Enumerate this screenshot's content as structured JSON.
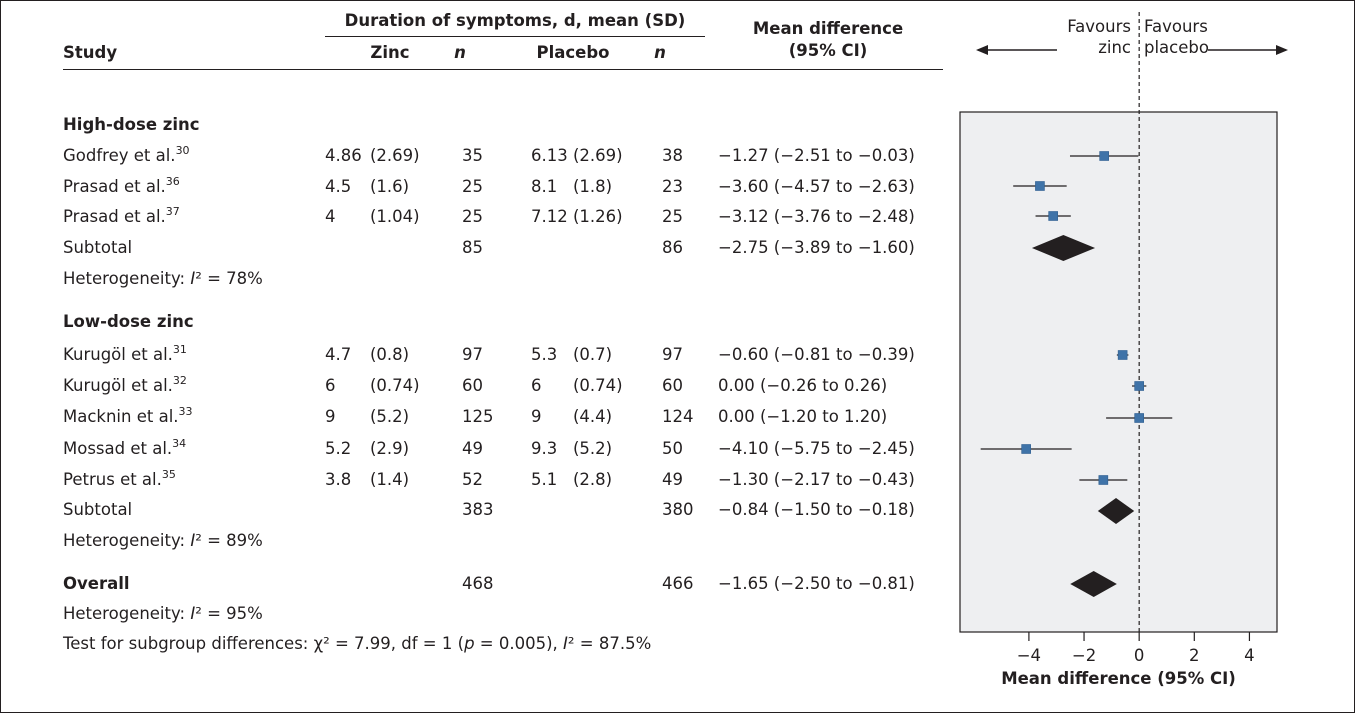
{
  "header": {
    "study": "Study",
    "duration": "Duration of symptoms, d, mean (SD)",
    "zinc": "Zinc",
    "n1": "n",
    "placebo": "Placebo",
    "n2": "n",
    "md_line1": "Mean difference",
    "md_line2": "(95% CI)",
    "favours_zinc_1": "Favours",
    "favours_zinc_2": "zinc",
    "favours_placebo_1": "Favours",
    "favours_placebo_2": "placebo"
  },
  "groups": [
    {
      "name": "High-dose zinc",
      "rows": [
        {
          "study": "Godfrey et al.",
          "ref": "30",
          "zinc_mean": "4.86",
          "zinc_sd": "(2.69)",
          "zinc_n": "35",
          "placebo_mean": "6.13",
          "placebo_sd": "(2.69)",
          "placebo_n": "38",
          "md": "−1.27 (−2.51 to −0.03)"
        },
        {
          "study": "Prasad et al.",
          "ref": "36",
          "zinc_mean": "4.5",
          "zinc_sd": "(1.6)",
          "zinc_n": "25",
          "placebo_mean": "8.1",
          "placebo_sd": "(1.8)",
          "placebo_n": "23",
          "md": "−3.60 (−4.57 to −2.63)"
        },
        {
          "study": "Prasad et al.",
          "ref": "37",
          "zinc_mean": "4",
          "zinc_sd": "(1.04)",
          "zinc_n": "25",
          "placebo_mean": "7.12",
          "placebo_sd": "(1.26)",
          "placebo_n": "25",
          "md": "−3.12 (−3.76 to −2.48)"
        }
      ],
      "subtotal": {
        "label": "Subtotal",
        "zinc_n": "85",
        "placebo_n": "86",
        "md": "−2.75 (−3.89 to −1.60)"
      },
      "heterogeneity": {
        "prefix": "Heterogeneity: ",
        "stat": "I",
        "suffix": "² = 78%"
      }
    },
    {
      "name": "Low-dose zinc",
      "rows": [
        {
          "study": "Kurugöl et al.",
          "ref": "31",
          "zinc_mean": "4.7",
          "zinc_sd": "(0.8)",
          "zinc_n": "97",
          "placebo_mean": "5.3",
          "placebo_sd": "(0.7)",
          "placebo_n": "97",
          "md": "−0.60 (−0.81 to −0.39)"
        },
        {
          "study": "Kurugöl et al.",
          "ref": "32",
          "zinc_mean": "6",
          "zinc_sd": "(0.74)",
          "zinc_n": "60",
          "placebo_mean": "6",
          "placebo_sd": "(0.74)",
          "placebo_n": "60",
          "md": "0.00 (−0.26 to 0.26)"
        },
        {
          "study": "Macknin et al.",
          "ref": "33",
          "zinc_mean": "9",
          "zinc_sd": "(5.2)",
          "zinc_n": "125",
          "placebo_mean": "9",
          "placebo_sd": "(4.4)",
          "placebo_n": "124",
          "md": "0.00 (−1.20 to 1.20)"
        },
        {
          "study": "Mossad et al.",
          "ref": "34",
          "zinc_mean": "5.2",
          "zinc_sd": "(2.9)",
          "zinc_n": "49",
          "placebo_mean": "9.3",
          "placebo_sd": "(5.2)",
          "placebo_n": "50",
          "md": "−4.10 (−5.75 to −2.45)"
        },
        {
          "study": "Petrus et al.",
          "ref": "35",
          "zinc_mean": "3.8",
          "zinc_sd": "(1.4)",
          "zinc_n": "52",
          "placebo_mean": "5.1",
          "placebo_sd": "(2.8)",
          "placebo_n": "49",
          "md": "−1.30 (−2.17 to −0.43)"
        }
      ],
      "subtotal": {
        "label": "Subtotal",
        "zinc_n": "383",
        "placebo_n": "380",
        "md": "−0.84 (−1.50 to −0.18)"
      },
      "heterogeneity": {
        "prefix": "Heterogeneity: ",
        "stat": "I",
        "suffix": "² = 89%"
      }
    }
  ],
  "overall": {
    "label": "Overall",
    "zinc_n": "468",
    "placebo_n": "466",
    "md": "−1.65 (−2.50 to −0.81)"
  },
  "overall_heterogeneity": {
    "prefix": "Heterogeneity: ",
    "stat": "I",
    "suffix": "² = 95%"
  },
  "subgroup_test": {
    "prefix": "Test for subgroup differences:  χ² = 7.99, df = 1 (",
    "p": "p",
    "mid": " = 0.005), ",
    "stat": "I",
    "suffix": "² = 87.5%"
  },
  "colors": {
    "marker": "#3f73a8",
    "panel": "#eeeff1",
    "diamond": "#231f20",
    "line": "#231f20"
  },
  "chart_data": {
    "type": "forest",
    "xlabel": "Mean difference (95% CI)",
    "xlim": [
      -6.5,
      5
    ],
    "xticks": [
      -4,
      -2,
      0,
      2,
      4
    ],
    "reference_line": 0,
    "studies": [
      {
        "label": "Godfrey et al.",
        "mean": -1.27,
        "lo": -2.51,
        "hi": -0.03
      },
      {
        "label": "Prasad et al.",
        "mean": -3.6,
        "lo": -4.57,
        "hi": -2.63
      },
      {
        "label": "Prasad et al.",
        "mean": -3.12,
        "lo": -3.76,
        "hi": -2.48
      },
      {
        "label": "Subtotal",
        "mean": -2.75,
        "lo": -3.89,
        "hi": -1.6,
        "diamond": true
      },
      {
        "label": "Kurugöl et al.",
        "mean": -0.6,
        "lo": -0.81,
        "hi": -0.39
      },
      {
        "label": "Kurugöl et al.",
        "mean": 0.0,
        "lo": -0.26,
        "hi": 0.26
      },
      {
        "label": "Macknin et al.",
        "mean": 0.0,
        "lo": -1.2,
        "hi": 1.2
      },
      {
        "label": "Mossad et al.",
        "mean": -4.1,
        "lo": -5.75,
        "hi": -2.45
      },
      {
        "label": "Petrus et al.",
        "mean": -1.3,
        "lo": -2.17,
        "hi": -0.43
      },
      {
        "label": "Subtotal",
        "mean": -0.84,
        "lo": -1.5,
        "hi": -0.18,
        "diamond": true
      },
      {
        "label": "Overall",
        "mean": -1.65,
        "lo": -2.5,
        "hi": -0.81,
        "diamond": true
      }
    ]
  }
}
